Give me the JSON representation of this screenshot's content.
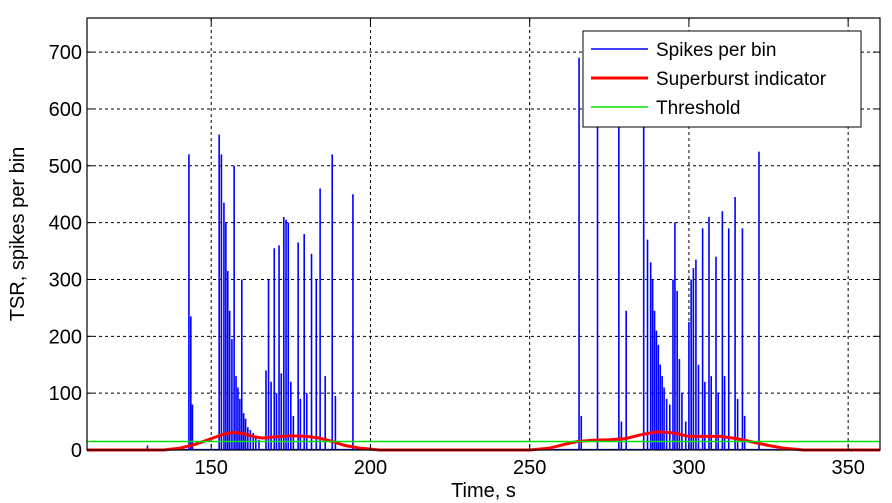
{
  "chart_data": {
    "type": "line",
    "xlabel": "Time, s",
    "ylabel": "TSR, spikes per bin",
    "xlim": [
      111,
      360
    ],
    "ylim": [
      0,
      760
    ],
    "xticks": [
      150,
      200,
      250,
      300,
      350
    ],
    "yticks": [
      0,
      100,
      200,
      300,
      400,
      500,
      600,
      700
    ],
    "grid": true,
    "legend_position": "top-right",
    "series": [
      {
        "name": "Spikes per bin",
        "color": "#0000ff",
        "style": "spikes",
        "points": [
          [
            130,
            8
          ],
          [
            143.0,
            520
          ],
          [
            143.6,
            235
          ],
          [
            144.1,
            80
          ],
          [
            152.5,
            555
          ],
          [
            153.2,
            520
          ],
          [
            154.0,
            435
          ],
          [
            154.6,
            400
          ],
          [
            155.2,
            315
          ],
          [
            155.8,
            245
          ],
          [
            156.5,
            195
          ],
          [
            157.2,
            500
          ],
          [
            157.8,
            130
          ],
          [
            158.4,
            110
          ],
          [
            159.0,
            90
          ],
          [
            159.6,
            300
          ],
          [
            160.2,
            65
          ],
          [
            160.8,
            55
          ],
          [
            161.5,
            40
          ],
          [
            162.3,
            35
          ],
          [
            163.2,
            30
          ],
          [
            164.0,
            25
          ],
          [
            165.0,
            18
          ],
          [
            167.2,
            140
          ],
          [
            168.0,
            300
          ],
          [
            168.8,
            120
          ],
          [
            169.8,
            355
          ],
          [
            170.5,
            100
          ],
          [
            171.3,
            360
          ],
          [
            172.0,
            135
          ],
          [
            172.8,
            410
          ],
          [
            173.5,
            405
          ],
          [
            174.2,
            400
          ],
          [
            175.0,
            120
          ],
          [
            175.8,
            60
          ],
          [
            177.3,
            365
          ],
          [
            178.0,
            90
          ],
          [
            179.2,
            380
          ],
          [
            180.0,
            100
          ],
          [
            181.5,
            345
          ],
          [
            183.0,
            300
          ],
          [
            184.2,
            460
          ],
          [
            185.8,
            130
          ],
          [
            188.0,
            520
          ],
          [
            189.0,
            95
          ],
          [
            194.5,
            450
          ],
          [
            265.5,
            690
          ],
          [
            266.2,
            60
          ],
          [
            271.3,
            570
          ],
          [
            278.0,
            690
          ],
          [
            278.8,
            50
          ],
          [
            280.3,
            245
          ],
          [
            285.8,
            730
          ],
          [
            287.0,
            370
          ],
          [
            288.0,
            330
          ],
          [
            288.6,
            300
          ],
          [
            289.2,
            245
          ],
          [
            289.8,
            210
          ],
          [
            290.4,
            185
          ],
          [
            291.0,
            150
          ],
          [
            291.6,
            130
          ],
          [
            292.2,
            110
          ],
          [
            293.0,
            90
          ],
          [
            294.0,
            80
          ],
          [
            295.0,
            300
          ],
          [
            295.6,
            400
          ],
          [
            296.3,
            280
          ],
          [
            297.0,
            160
          ],
          [
            297.8,
            100
          ],
          [
            299.0,
            50
          ],
          [
            300.0,
            225
          ],
          [
            300.7,
            300
          ],
          [
            301.4,
            320
          ],
          [
            302.2,
            335
          ],
          [
            303.0,
            150
          ],
          [
            304.3,
            390
          ],
          [
            305.0,
            120
          ],
          [
            306.3,
            410
          ],
          [
            307.0,
            130
          ],
          [
            308.5,
            340
          ],
          [
            309.2,
            100
          ],
          [
            310.5,
            420
          ],
          [
            311.2,
            130
          ],
          [
            312.5,
            390
          ],
          [
            314.5,
            445
          ],
          [
            315.3,
            90
          ],
          [
            316.8,
            390
          ],
          [
            317.5,
            60
          ],
          [
            322.0,
            525
          ]
        ]
      },
      {
        "name": "Superburst indicator",
        "color": "#ff0000",
        "style": "line",
        "points": [
          [
            111,
            0
          ],
          [
            135,
            0
          ],
          [
            140,
            3
          ],
          [
            145,
            10
          ],
          [
            150,
            20
          ],
          [
            154,
            28
          ],
          [
            157,
            31
          ],
          [
            160,
            29
          ],
          [
            163,
            24
          ],
          [
            166,
            21
          ],
          [
            170,
            23
          ],
          [
            175,
            25
          ],
          [
            180,
            24
          ],
          [
            184,
            21
          ],
          [
            188,
            15
          ],
          [
            192,
            8
          ],
          [
            197,
            3
          ],
          [
            203,
            0
          ],
          [
            250,
            0
          ],
          [
            256,
            3
          ],
          [
            261,
            10
          ],
          [
            265,
            15
          ],
          [
            270,
            17
          ],
          [
            275,
            18
          ],
          [
            280,
            20
          ],
          [
            285,
            27
          ],
          [
            290,
            32
          ],
          [
            295,
            30
          ],
          [
            300,
            24
          ],
          [
            305,
            24
          ],
          [
            310,
            24
          ],
          [
            315,
            20
          ],
          [
            320,
            14
          ],
          [
            325,
            8
          ],
          [
            330,
            3
          ],
          [
            336,
            0
          ],
          [
            360,
            0
          ]
        ]
      },
      {
        "name": "Threshold",
        "color": "#00e000",
        "style": "line",
        "points": [
          [
            111,
            15
          ],
          [
            360,
            15
          ]
        ]
      }
    ]
  }
}
